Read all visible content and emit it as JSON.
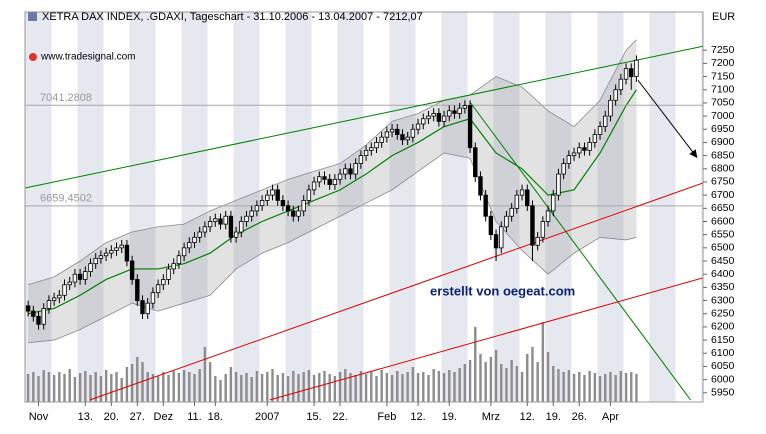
{
  "chart_data": {
    "type": "candlestick",
    "title": "XETRA DAX INDEX, .GDAXI, Tageschart - 31.10.2006 - 13.04.2007 - 7212,07",
    "unit": "EUR",
    "source": "www.tradesignal.com",
    "annotation": "erstellt von oegeat.com",
    "xlim": [
      -0.6,
      129.8
    ],
    "ylim": [
      5915,
      7395
    ],
    "yticks": [
      5950,
      6000,
      6050,
      6100,
      6150,
      6200,
      6250,
      6300,
      6350,
      6400,
      6450,
      6500,
      6550,
      6600,
      6650,
      6700,
      6750,
      6800,
      6850,
      6900,
      6950,
      7000,
      7050,
      7100,
      7150,
      7200,
      7250
    ],
    "xticks": [
      {
        "value": 2,
        "label": "Nov"
      },
      {
        "value": 11,
        "label": "13."
      },
      {
        "value": 16,
        "label": "20."
      },
      {
        "value": 21,
        "label": "27."
      },
      {
        "value": 26,
        "label": "Dez"
      },
      {
        "value": 32,
        "label": "11."
      },
      {
        "value": 36,
        "label": "18."
      },
      {
        "value": 46,
        "label": "2007"
      },
      {
        "value": 55,
        "label": "15."
      },
      {
        "value": 60,
        "label": "22."
      },
      {
        "value": 69,
        "label": "Feb"
      },
      {
        "value": 75,
        "label": "12."
      },
      {
        "value": 81,
        "label": "19."
      },
      {
        "value": 89,
        "label": "Mrz"
      },
      {
        "value": 96,
        "label": "12."
      },
      {
        "value": 101,
        "label": "19."
      },
      {
        "value": 106,
        "label": "26."
      },
      {
        "value": 112,
        "label": "Apr"
      }
    ],
    "open": [
      6280,
      6260,
      6240,
      6210,
      6270,
      6300,
      6310,
      6320,
      6360,
      6370,
      6400,
      6380,
      6410,
      6440,
      6460,
      6470,
      6480,
      6490,
      6500,
      6510,
      6450,
      6380,
      6300,
      6250,
      6290,
      6330,
      6360,
      6380,
      6420,
      6440,
      6470,
      6500,
      6520,
      6540,
      6560,
      6580,
      6600,
      6610,
      6590,
      6620,
      6540,
      6560,
      6600,
      6620,
      6640,
      6660,
      6680,
      6700,
      6720,
      6680,
      6660,
      6640,
      6620,
      6640,
      6680,
      6720,
      6750,
      6770,
      6760,
      6740,
      6760,
      6780,
      6800,
      6780,
      6820,
      6850,
      6870,
      6880,
      6900,
      6920,
      6940,
      6950,
      6930,
      6910,
      6920,
      6950,
      6970,
      6990,
      7000,
      7010,
      6980,
      7000,
      7020,
      7010,
      7030,
      7040,
      6880,
      6770,
      6700,
      6620,
      6550,
      6500,
      6580,
      6620,
      6650,
      6700,
      6720,
      6660,
      6510,
      6540,
      6600,
      6640,
      6700,
      6780,
      6820,
      6850,
      6860,
      6880,
      6870,
      6900,
      6930,
      6960,
      7000,
      7060,
      7100,
      7140,
      7180,
      7150
    ],
    "high": [
      6300,
      6280,
      6260,
      6290,
      6320,
      6330,
      6340,
      6380,
      6390,
      6420,
      6420,
      6430,
      6460,
      6480,
      6490,
      6500,
      6510,
      6520,
      6530,
      6530,
      6470,
      6400,
      6320,
      6310,
      6350,
      6380,
      6400,
      6440,
      6460,
      6490,
      6520,
      6540,
      6560,
      6580,
      6600,
      6620,
      6630,
      6630,
      6640,
      6640,
      6580,
      6620,
      6640,
      6660,
      6680,
      6700,
      6720,
      6740,
      6740,
      6700,
      6680,
      6660,
      6660,
      6700,
      6740,
      6770,
      6790,
      6790,
      6780,
      6780,
      6800,
      6820,
      6820,
      6840,
      6870,
      6890,
      6900,
      6920,
      6940,
      6960,
      6970,
      6970,
      6950,
      6940,
      6970,
      6990,
      7010,
      7020,
      7030,
      7030,
      7020,
      7040,
      7040,
      7050,
      7060,
      7060,
      6900,
      6790,
      6720,
      6640,
      6570,
      6600,
      6640,
      6670,
      6720,
      6740,
      6740,
      6680,
      6560,
      6620,
      6660,
      6720,
      6800,
      6840,
      6870,
      6880,
      6900,
      6900,
      6920,
      6950,
      6980,
      7020,
      7080,
      7120,
      7160,
      7200,
      7200,
      7230
    ],
    "low": [
      6240,
      6220,
      6190,
      6190,
      6250,
      6280,
      6290,
      6300,
      6340,
      6350,
      6360,
      6360,
      6390,
      6420,
      6440,
      6450,
      6460,
      6470,
      6480,
      6430,
      6360,
      6280,
      6230,
      6230,
      6270,
      6310,
      6340,
      6360,
      6400,
      6420,
      6450,
      6480,
      6500,
      6520,
      6540,
      6560,
      6580,
      6570,
      6570,
      6520,
      6520,
      6540,
      6580,
      6600,
      6620,
      6640,
      6660,
      6680,
      6660,
      6640,
      6620,
      6600,
      6600,
      6620,
      6660,
      6700,
      6730,
      6740,
      6720,
      6720,
      6740,
      6760,
      6760,
      6760,
      6800,
      6830,
      6850,
      6860,
      6880,
      6900,
      6920,
      6910,
      6890,
      6890,
      6900,
      6930,
      6950,
      6970,
      6980,
      6960,
      6960,
      6980,
      6990,
      6990,
      7010,
      6860,
      6750,
      6680,
      6600,
      6530,
      6450,
      6480,
      6560,
      6600,
      6630,
      6680,
      6640,
      6450,
      6490,
      6520,
      6580,
      6620,
      6680,
      6760,
      6800,
      6830,
      6840,
      6850,
      6850,
      6880,
      6910,
      6940,
      6980,
      7040,
      7080,
      7120,
      7100,
      7130
    ],
    "close": [
      6260,
      6240,
      6210,
      6270,
      6300,
      6310,
      6320,
      6360,
      6370,
      6400,
      6380,
      6410,
      6440,
      6460,
      6470,
      6480,
      6490,
      6500,
      6510,
      6450,
      6380,
      6300,
      6250,
      6290,
      6330,
      6360,
      6380,
      6420,
      6440,
      6470,
      6500,
      6520,
      6540,
      6560,
      6580,
      6600,
      6610,
      6590,
      6620,
      6540,
      6560,
      6600,
      6620,
      6640,
      6660,
      6680,
      6700,
      6720,
      6680,
      6660,
      6640,
      6620,
      6640,
      6680,
      6720,
      6750,
      6770,
      6760,
      6740,
      6760,
      6780,
      6800,
      6780,
      6820,
      6850,
      6870,
      6880,
      6900,
      6920,
      6940,
      6950,
      6930,
      6910,
      6920,
      6950,
      6970,
      6990,
      7000,
      7010,
      6980,
      7000,
      7020,
      7010,
      7030,
      7040,
      6880,
      6770,
      6700,
      6620,
      6550,
      6500,
      6580,
      6620,
      6650,
      6700,
      6720,
      6660,
      6510,
      6540,
      6600,
      6640,
      6700,
      6780,
      6820,
      6850,
      6860,
      6880,
      6870,
      6900,
      6930,
      6960,
      7000,
      7060,
      7100,
      7140,
      7180,
      7150,
      7212
    ],
    "volume": {
      "color": "#8c8c8c",
      "ylim": [
        0,
        100
      ],
      "values": [
        28,
        30,
        26,
        32,
        30,
        27,
        30,
        28,
        33,
        25,
        29,
        31,
        27,
        30,
        26,
        32,
        28,
        30,
        24,
        35,
        38,
        45,
        40,
        30,
        28,
        26,
        30,
        27,
        31,
        29,
        32,
        30,
        28,
        33,
        55,
        40,
        26,
        22,
        28,
        35,
        30,
        27,
        29,
        25,
        31,
        28,
        30,
        33,
        27,
        29,
        26,
        31,
        28,
        30,
        32,
        27,
        29,
        31,
        28,
        26,
        30,
        33,
        29,
        27,
        31,
        28,
        30,
        26,
        32,
        29,
        27,
        31,
        28,
        30,
        35,
        29,
        30,
        27,
        33,
        31,
        29,
        32,
        30,
        34,
        38,
        42,
        75,
        48,
        40,
        45,
        52,
        38,
        34,
        42,
        36,
        30,
        48,
        55,
        40,
        80,
        50,
        36,
        33,
        30,
        32,
        28,
        30,
        27,
        31,
        29,
        26,
        28,
        30,
        27,
        31,
        29,
        30,
        28
      ]
    },
    "bollinger": {
      "band_color": "#8a8a8a",
      "middle_color": "#008000",
      "x": [
        0,
        5,
        10,
        15,
        20,
        25,
        30,
        35,
        40,
        45,
        50,
        55,
        60,
        65,
        70,
        75,
        80,
        85,
        90,
        95,
        100,
        105,
        110,
        115,
        117
      ],
      "upper": [
        6360,
        6390,
        6450,
        6520,
        6560,
        6580,
        6590,
        6640,
        6680,
        6720,
        6760,
        6790,
        6820,
        6890,
        6980,
        7010,
        7060,
        7080,
        7150,
        7110,
        7020,
        6960,
        7060,
        7250,
        7290
      ],
      "middle": [
        6250,
        6270,
        6320,
        6380,
        6420,
        6420,
        6440,
        6480,
        6550,
        6600,
        6640,
        6680,
        6720,
        6780,
        6850,
        6900,
        6960,
        6990,
        6860,
        6800,
        6700,
        6720,
        6860,
        7040,
        7100
      ],
      "lower": [
        6140,
        6150,
        6190,
        6240,
        6290,
        6260,
        6290,
        6320,
        6420,
        6480,
        6520,
        6570,
        6620,
        6670,
        6720,
        6790,
        6860,
        6840,
        6600,
        6490,
        6400,
        6480,
        6540,
        6530,
        6540
      ]
    },
    "levels": [
      {
        "value": 7041.2808,
        "label": "7041,2808"
      },
      {
        "value": 6659.4502,
        "label": "6659,4502"
      }
    ],
    "level_color": "#a8a8a8",
    "lines": [
      {
        "color": "#008000",
        "points": [
          [
            -0.6,
            6727
          ],
          [
            129.8,
            7265
          ]
        ]
      },
      {
        "color": "#008000",
        "points": [
          [
            85,
            7053
          ],
          [
            127.4,
            5923
          ]
        ]
      },
      {
        "color": "#e00000",
        "points": [
          [
            11.9,
            5923
          ],
          [
            129.8,
            6746
          ]
        ]
      },
      {
        "color": "#e00000",
        "points": [
          [
            46.5,
            5923
          ],
          [
            129.8,
            6386
          ]
        ]
      }
    ],
    "arrow": {
      "color": "#000000",
      "points": [
        [
          117.3,
          7136
        ],
        [
          128.6,
          6844
        ]
      ]
    },
    "up_color": "#ffffff",
    "down_color": "#000000"
  }
}
